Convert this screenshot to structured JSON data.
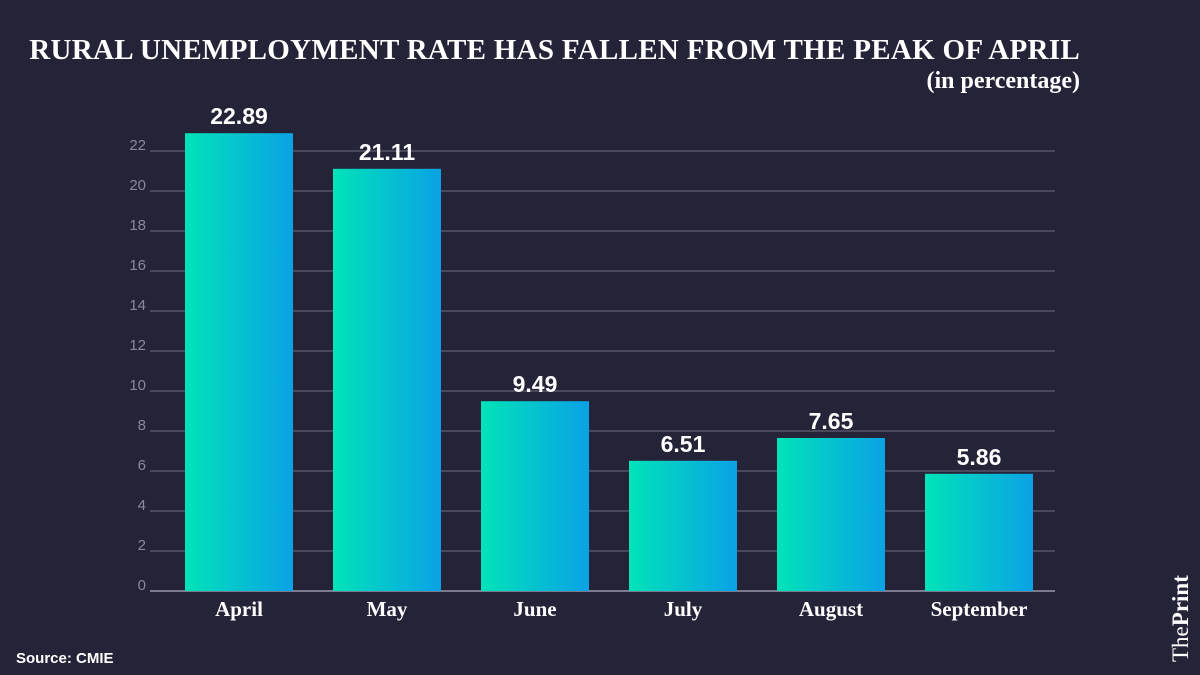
{
  "chart_data": {
    "type": "bar",
    "title": "RURAL UNEMPLOYMENT RATE HAS FALLEN FROM THE PEAK OF APRIL",
    "subtitle": "(in percentage)",
    "categories": [
      "April",
      "May",
      "June",
      "July",
      "August",
      "September"
    ],
    "values": [
      22.89,
      21.11,
      9.49,
      6.51,
      7.65,
      5.86
    ],
    "value_labels": [
      "22.89",
      "21.11",
      "9.49",
      "6.51",
      "7.65",
      "5.86"
    ],
    "ylim": [
      0,
      22
    ],
    "yticks": [
      0,
      2,
      4,
      6,
      8,
      10,
      12,
      14,
      16,
      18,
      20,
      22
    ],
    "xlabel": "",
    "ylabel": "",
    "grid": true,
    "colors": {
      "bar_start": "#00e3b8",
      "bar_end": "#0aa2e6",
      "grid": "#6e6c82",
      "tick": "#8a889e",
      "text": "#ffffff",
      "background": "#252338"
    }
  },
  "footer": {
    "source": "Source: CMIE",
    "brand_the": "The",
    "brand_print": "Print"
  }
}
